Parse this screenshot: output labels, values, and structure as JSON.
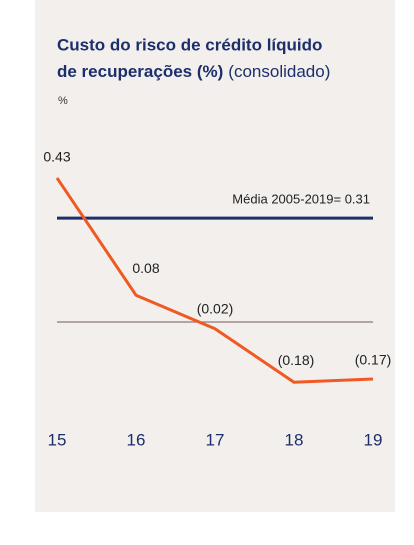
{
  "chart_data": {
    "type": "line",
    "title_lines": [
      "Custo do risco de crédito líquido",
      "de recuperações (%)"
    ],
    "subtitle": "(consolidado)",
    "y_label": "%",
    "categories": [
      "15",
      "16",
      "17",
      "18",
      "19"
    ],
    "series": [
      {
        "name": null,
        "color": "#f05a22",
        "values": [
          0.43,
          0.08,
          -0.02,
          -0.18,
          -0.17
        ],
        "value_labels": [
          "0.43",
          "0.08",
          "(0.02)",
          "(0.18)",
          "(0.17)"
        ]
      }
    ],
    "reference": {
      "label": "Média 2005-2019= 0.31",
      "value": 0.31,
      "color": "#1c2f6b"
    },
    "ylim": [
      -0.3,
      0.5
    ]
  }
}
